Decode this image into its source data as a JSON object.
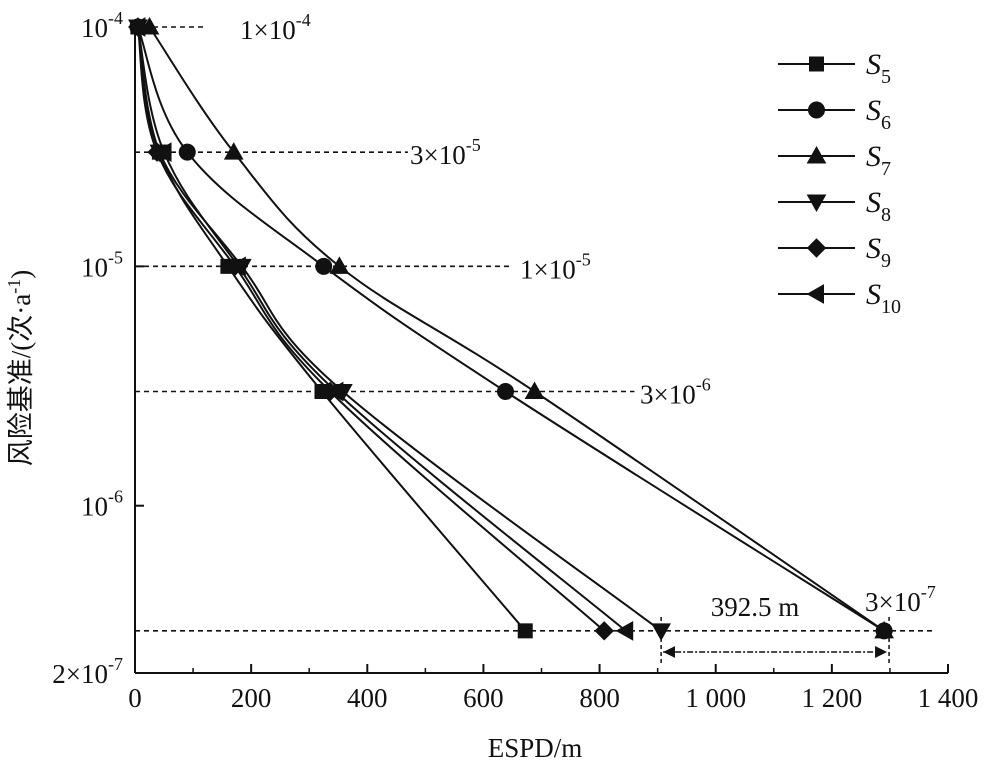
{
  "chart_data": {
    "type": "line",
    "xlabel": "ESPD/m",
    "ylabel": "风险基准/(次·a",
    "ylabel_sup": "-1",
    "ylabel_end": ")",
    "x_ticks": [
      {
        "value": 0,
        "label": "0"
      },
      {
        "value": 200,
        "label": "200"
      },
      {
        "value": 400,
        "label": "400"
      },
      {
        "value": 600,
        "label": "600"
      },
      {
        "value": 800,
        "label": "800"
      },
      {
        "value": 1000,
        "label": "1 000"
      },
      {
        "value": 1200,
        "label": "1 200"
      },
      {
        "value": 1400,
        "label": "1 400"
      }
    ],
    "y_ticks": [
      {
        "value": 0.0001,
        "mant": "10",
        "exp": "-4"
      },
      {
        "value": 1e-05,
        "mant": "10",
        "exp": "-5"
      },
      {
        "value": 1e-06,
        "mant": "10",
        "exp": "-6"
      },
      {
        "value": 2e-07,
        "mant": "2×10",
        "exp": "-7"
      }
    ],
    "xlim": [
      0,
      1400
    ],
    "ylim": [
      2e-07,
      0.0001
    ],
    "y_scale": "log",
    "risk_levels": [
      {
        "value": 0.0001,
        "mant": "1×10",
        "exp": "-4",
        "x_end": 120
      },
      {
        "value": 3e-05,
        "mant": "3×10",
        "exp": "-5",
        "x_end": 470
      },
      {
        "value": 1e-05,
        "mant": "1×10",
        "exp": "-5",
        "x_end": 650
      },
      {
        "value": 3e-06,
        "mant": "3×10",
        "exp": "-6",
        "x_end": 860
      },
      {
        "value": 3e-07,
        "mant": "3×10",
        "exp": "-7",
        "x_end": 1400
      }
    ],
    "series": [
      {
        "name": "S",
        "sub": "5",
        "marker": "square",
        "x": [
          5,
          42,
          160,
          322,
          672
        ]
      },
      {
        "name": "S",
        "sub": "6",
        "marker": "circle",
        "x": [
          5,
          90,
          325,
          638,
          1290
        ]
      },
      {
        "name": "S",
        "sub": "7",
        "marker": "triangle-up",
        "x": [
          25,
          170,
          352,
          688,
          1290
        ]
      },
      {
        "name": "S",
        "sub": "8",
        "marker": "triangle-down",
        "x": [
          5,
          42,
          184,
          358,
          906
        ]
      },
      {
        "name": "S",
        "sub": "9",
        "marker": "diamond",
        "x": [
          5,
          38,
          172,
          336,
          808
        ]
      },
      {
        "name": "S",
        "sub": "10",
        "marker": "triangle-left",
        "x": [
          5,
          50,
          178,
          346,
          845
        ]
      }
    ],
    "y_points": [
      0.0001,
      3e-05,
      1e-05,
      3e-06,
      3e-07
    ],
    "gap_annotation": {
      "label": "392.5 m",
      "x_from": 906,
      "x_to": 1298.5
    },
    "legend_position": "top-right",
    "grid": false
  }
}
